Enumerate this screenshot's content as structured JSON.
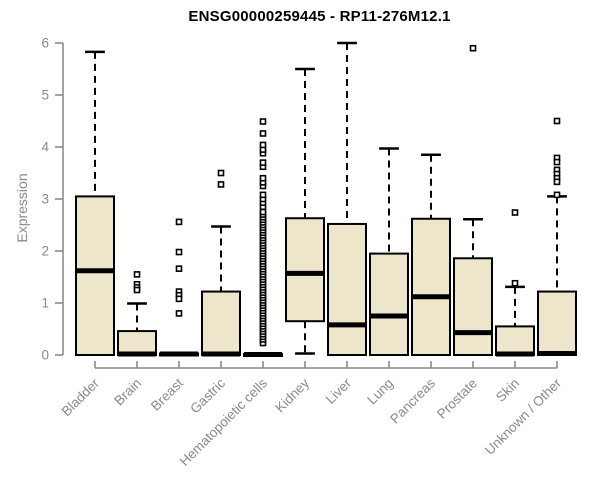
{
  "chart_data": {
    "type": "boxplot",
    "title": "ENSG00000259445 - RP11-276M12.1",
    "ylabel": "Expression",
    "xlabel": "",
    "ylim": [
      0,
      6
    ],
    "yticks": [
      0,
      1,
      2,
      3,
      4,
      5,
      6
    ],
    "grid": false,
    "legend": null,
    "colors": {
      "box_fill": "#EDE6CB",
      "box_stroke": "#000000",
      "median": "#000000",
      "whisker": "#000000",
      "axis": "#8a8a8a",
      "tick_label": "#8a8a8a",
      "title": "#000000",
      "background": "#ffffff"
    },
    "categories": [
      "Bladder",
      "Brain",
      "Breast",
      "Gastric",
      "Hematopoietic cells",
      "Kidney",
      "Liver",
      "Lung",
      "Pancreas",
      "Prostate",
      "Skin",
      "Unknown / Other"
    ],
    "series": [
      {
        "name": "Bladder",
        "whislo": 0,
        "q1": 0,
        "med": 1.62,
        "q3": 3.05,
        "whishi": 5.83,
        "outliers": []
      },
      {
        "name": "Brain",
        "whislo": 0,
        "q1": 0,
        "med": 0.02,
        "q3": 0.46,
        "whishi": 0.99,
        "outliers": [
          1.55,
          1.36,
          1.3,
          1.25
        ]
      },
      {
        "name": "Breast",
        "whislo": 0,
        "q1": 0,
        "med": 0.02,
        "q3": 0.03,
        "whishi": 0.04,
        "outliers": [
          2.56,
          1.98,
          1.66,
          1.22,
          1.15,
          1.08,
          0.8
        ]
      },
      {
        "name": "Gastric",
        "whislo": 0,
        "q1": 0,
        "med": 0.02,
        "q3": 1.22,
        "whishi": 2.47,
        "outliers": [
          3.5,
          3.28
        ]
      },
      {
        "name": "Hematopoietic cells",
        "whislo": 0,
        "q1": 0,
        "med": 0.01,
        "q3": 0.02,
        "whishi": 0.04,
        "outliers": [
          0.23,
          0.3,
          0.35,
          0.4,
          0.45,
          0.5,
          0.55,
          0.6,
          0.65,
          0.7,
          0.75,
          0.8,
          0.85,
          0.9,
          0.95,
          1.0,
          1.05,
          1.1,
          1.15,
          1.2,
          1.25,
          1.3,
          1.35,
          1.4,
          1.45,
          1.5,
          1.55,
          1.6,
          1.65,
          1.7,
          1.75,
          1.8,
          1.85,
          1.9,
          1.95,
          2.0,
          2.05,
          2.1,
          2.15,
          2.2,
          2.25,
          2.3,
          2.35,
          2.4,
          2.45,
          2.5,
          2.55,
          2.6,
          2.65,
          2.7,
          2.75,
          2.85,
          2.93,
          3.0,
          3.08,
          3.25,
          3.32,
          3.4,
          3.62,
          3.7,
          3.88,
          3.95,
          4.04,
          4.26,
          4.49
        ]
      },
      {
        "name": "Kidney",
        "whislo": 0.03,
        "q1": 0.65,
        "med": 1.57,
        "q3": 2.63,
        "whishi": 5.5,
        "outliers": []
      },
      {
        "name": "Liver",
        "whislo": 0,
        "q1": 0,
        "med": 0.58,
        "q3": 2.52,
        "whishi": 6.0,
        "outliers": []
      },
      {
        "name": "Lung",
        "whislo": 0,
        "q1": 0,
        "med": 0.75,
        "q3": 1.95,
        "whishi": 3.97,
        "outliers": []
      },
      {
        "name": "Pancreas",
        "whislo": 0,
        "q1": 0,
        "med": 1.12,
        "q3": 2.62,
        "whishi": 3.85,
        "outliers": []
      },
      {
        "name": "Prostate",
        "whislo": 0,
        "q1": 0,
        "med": 0.43,
        "q3": 1.86,
        "whishi": 2.61,
        "outliers": [
          5.9
        ]
      },
      {
        "name": "Skin",
        "whislo": 0,
        "q1": 0,
        "med": 0.02,
        "q3": 0.55,
        "whishi": 1.31,
        "outliers": [
          2.74,
          1.38
        ]
      },
      {
        "name": "Unknown / Other",
        "whislo": 0,
        "q1": 0,
        "med": 0.03,
        "q3": 1.22,
        "whishi": 3.05,
        "outliers": [
          4.5,
          3.79,
          3.71,
          3.56,
          3.48,
          3.4,
          3.33,
          3.08
        ]
      }
    ]
  }
}
